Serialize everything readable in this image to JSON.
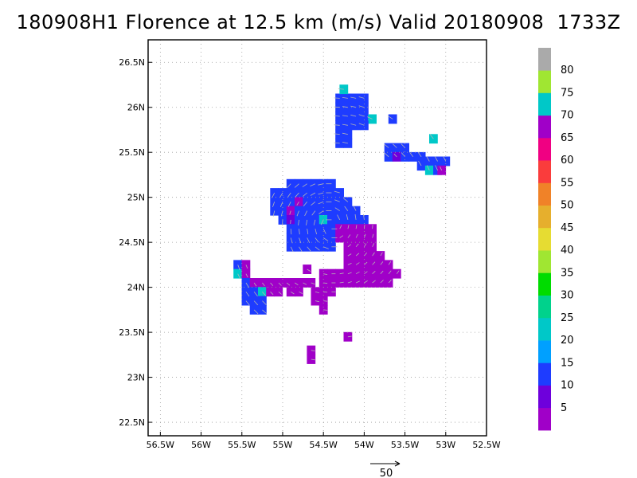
{
  "chart_data": {
    "type": "heatmap",
    "title": "180908H1 Florence at 12.5 km (m/s) Valid 20180908  1733Z",
    "x_ticks": [
      -56.5,
      -56,
      -55.5,
      -55,
      -54.5,
      -54,
      -53.5,
      -53,
      -52.5
    ],
    "x_tick_labels": [
      "56.5W",
      "56W",
      "55.5W",
      "55W",
      "54.5W",
      "54W",
      "53.5W",
      "53W",
      "52.5W"
    ],
    "y_ticks": [
      22.5,
      23,
      23.5,
      24,
      24.5,
      25,
      25.5,
      26,
      26.5
    ],
    "y_tick_labels": [
      "22.5N",
      "23N",
      "23.5N",
      "24N",
      "24.5N",
      "25N",
      "25.5N",
      "26N",
      "26.5N"
    ],
    "xlim": [
      -56.65,
      -52.5
    ],
    "ylim": [
      22.35,
      26.75
    ],
    "grid": true,
    "colorbar": {
      "levels": [
        0,
        5,
        10,
        15,
        20,
        25,
        30,
        35,
        40,
        45,
        50,
        55,
        60,
        65,
        70,
        75,
        80,
        85
      ],
      "labels": [
        "5",
        "10",
        "15",
        "20",
        "25",
        "30",
        "35",
        "40",
        "45",
        "50",
        "55",
        "60",
        "65",
        "70",
        "75",
        "80"
      ],
      "colors": [
        "#a000c8",
        "#6e00dc",
        "#1e3cff",
        "#00a0ff",
        "#00c8c8",
        "#00d28c",
        "#00dc00",
        "#a0e632",
        "#e6dc32",
        "#e6af2d",
        "#f08228",
        "#fa3c3c",
        "#f00082",
        "#a000c8",
        "#00c8c8",
        "#a0e632",
        "#aaaaaa"
      ]
    },
    "cells_note": "lon/lat centers with speed class (m/s)",
    "cells": [
      [
        -54.3,
        26.1,
        12
      ],
      [
        -54.2,
        26.1,
        12
      ],
      [
        -54.1,
        26.1,
        12
      ],
      [
        -54.0,
        26.1,
        12
      ],
      [
        -54.25,
        26.2,
        22
      ],
      [
        -54.3,
        26.0,
        12
      ],
      [
        -54.2,
        26.0,
        12
      ],
      [
        -54.1,
        26.0,
        12
      ],
      [
        -54.0,
        26.0,
        12
      ],
      [
        -54.3,
        25.9,
        12
      ],
      [
        -54.2,
        25.9,
        12
      ],
      [
        -54.1,
        25.9,
        12
      ],
      [
        -54.0,
        25.9,
        12
      ],
      [
        -53.9,
        25.87,
        22
      ],
      [
        -53.65,
        25.87,
        12
      ],
      [
        -54.3,
        25.8,
        12
      ],
      [
        -54.2,
        25.8,
        12
      ],
      [
        -54.1,
        25.8,
        12
      ],
      [
        -54.0,
        25.8,
        12
      ],
      [
        -54.3,
        25.7,
        12
      ],
      [
        -54.2,
        25.7,
        12
      ],
      [
        -54.3,
        25.6,
        12
      ],
      [
        -54.2,
        25.6,
        12
      ],
      [
        -53.7,
        25.55,
        12
      ],
      [
        -53.6,
        25.55,
        12
      ],
      [
        -53.5,
        25.55,
        12
      ],
      [
        -53.15,
        25.65,
        22
      ],
      [
        -53.7,
        25.45,
        12
      ],
      [
        -53.6,
        25.45,
        8
      ],
      [
        -53.5,
        25.45,
        12
      ],
      [
        -53.4,
        25.45,
        12
      ],
      [
        -53.3,
        25.45,
        12
      ],
      [
        -53.2,
        25.4,
        12
      ],
      [
        -53.1,
        25.4,
        12
      ],
      [
        -53.0,
        25.4,
        12
      ],
      [
        -53.3,
        25.35,
        12
      ],
      [
        -53.2,
        25.3,
        22
      ],
      [
        -53.1,
        25.3,
        12
      ],
      [
        -53.05,
        25.3,
        3
      ],
      [
        -54.9,
        25.15,
        12
      ],
      [
        -54.8,
        25.15,
        12
      ],
      [
        -54.7,
        25.15,
        12
      ],
      [
        -54.6,
        25.15,
        12
      ],
      [
        -54.5,
        25.15,
        12
      ],
      [
        -54.4,
        25.15,
        12
      ],
      [
        -55.1,
        25.05,
        12
      ],
      [
        -55.0,
        25.05,
        12
      ],
      [
        -54.9,
        25.05,
        12
      ],
      [
        -54.8,
        25.05,
        12
      ],
      [
        -54.7,
        25.05,
        12
      ],
      [
        -54.6,
        25.05,
        12
      ],
      [
        -54.5,
        25.05,
        12
      ],
      [
        -54.4,
        25.05,
        12
      ],
      [
        -54.3,
        25.05,
        12
      ],
      [
        -55.1,
        24.95,
        12
      ],
      [
        -55.0,
        24.95,
        12
      ],
      [
        -54.9,
        24.95,
        12
      ],
      [
        -54.8,
        24.95,
        3
      ],
      [
        -54.7,
        24.95,
        12
      ],
      [
        -54.6,
        24.95,
        12
      ],
      [
        -54.5,
        24.95,
        12
      ],
      [
        -54.4,
        24.95,
        12
      ],
      [
        -54.3,
        24.95,
        12
      ],
      [
        -54.2,
        24.95,
        12
      ],
      [
        -55.1,
        24.85,
        12
      ],
      [
        -55.0,
        24.85,
        12
      ],
      [
        -54.9,
        24.85,
        3
      ],
      [
        -54.8,
        24.85,
        12
      ],
      [
        -54.7,
        24.85,
        12
      ],
      [
        -54.6,
        24.85,
        12
      ],
      [
        -54.5,
        24.85,
        12
      ],
      [
        -54.4,
        24.85,
        12
      ],
      [
        -54.3,
        24.85,
        12
      ],
      [
        -54.2,
        24.85,
        12
      ],
      [
        -54.1,
        24.85,
        12
      ],
      [
        -55.0,
        24.75,
        12
      ],
      [
        -54.9,
        24.75,
        8
      ],
      [
        -54.8,
        24.75,
        12
      ],
      [
        -54.7,
        24.75,
        12
      ],
      [
        -54.6,
        24.75,
        12
      ],
      [
        -54.5,
        24.75,
        22
      ],
      [
        -54.4,
        24.75,
        12
      ],
      [
        -54.3,
        24.75,
        12
      ],
      [
        -54.2,
        24.75,
        12
      ],
      [
        -54.1,
        24.75,
        12
      ],
      [
        -54.0,
        24.75,
        12
      ],
      [
        -54.9,
        24.65,
        12
      ],
      [
        -54.8,
        24.65,
        12
      ],
      [
        -54.7,
        24.65,
        12
      ],
      [
        -54.6,
        24.65,
        12
      ],
      [
        -54.5,
        24.65,
        12
      ],
      [
        -54.4,
        24.65,
        12
      ],
      [
        -54.3,
        24.65,
        3
      ],
      [
        -54.2,
        24.65,
        3
      ],
      [
        -54.1,
        24.65,
        3
      ],
      [
        -54.0,
        24.65,
        3
      ],
      [
        -53.9,
        24.65,
        3
      ],
      [
        -54.9,
        24.55,
        12
      ],
      [
        -54.8,
        24.55,
        12
      ],
      [
        -54.7,
        24.55,
        12
      ],
      [
        -54.6,
        24.55,
        12
      ],
      [
        -54.5,
        24.55,
        12
      ],
      [
        -54.4,
        24.55,
        12
      ],
      [
        -54.3,
        24.55,
        3
      ],
      [
        -54.2,
        24.55,
        3
      ],
      [
        -54.1,
        24.55,
        3
      ],
      [
        -54.0,
        24.55,
        3
      ],
      [
        -53.9,
        24.55,
        3
      ],
      [
        -54.9,
        24.45,
        12
      ],
      [
        -54.8,
        24.45,
        12
      ],
      [
        -54.7,
        24.45,
        12
      ],
      [
        -54.6,
        24.45,
        12
      ],
      [
        -54.5,
        24.45,
        12
      ],
      [
        -54.4,
        24.45,
        12
      ],
      [
        -54.2,
        24.45,
        3
      ],
      [
        -54.1,
        24.45,
        3
      ],
      [
        -54.0,
        24.45,
        3
      ],
      [
        -53.9,
        24.45,
        3
      ],
      [
        -54.2,
        24.35,
        3
      ],
      [
        -54.1,
        24.35,
        3
      ],
      [
        -54.0,
        24.35,
        3
      ],
      [
        -53.9,
        24.35,
        3
      ],
      [
        -53.8,
        24.35,
        3
      ],
      [
        -54.2,
        24.25,
        3
      ],
      [
        -54.1,
        24.25,
        3
      ],
      [
        -54.0,
        24.25,
        3
      ],
      [
        -53.9,
        24.25,
        3
      ],
      [
        -53.8,
        24.25,
        3
      ],
      [
        -53.7,
        24.25,
        3
      ],
      [
        -55.55,
        24.25,
        12
      ],
      [
        -55.55,
        24.15,
        22
      ],
      [
        -55.45,
        24.25,
        3
      ],
      [
        -55.45,
        24.15,
        3
      ],
      [
        -54.7,
        24.2,
        3
      ],
      [
        -54.5,
        24.15,
        3
      ],
      [
        -54.4,
        24.15,
        3
      ],
      [
        -54.3,
        24.15,
        3
      ],
      [
        -54.2,
        24.15,
        3
      ],
      [
        -54.1,
        24.15,
        3
      ],
      [
        -54.0,
        24.15,
        3
      ],
      [
        -53.9,
        24.15,
        3
      ],
      [
        -53.8,
        24.15,
        3
      ],
      [
        -53.7,
        24.15,
        3
      ],
      [
        -53.6,
        24.15,
        3
      ],
      [
        -55.45,
        24.05,
        12
      ],
      [
        -55.35,
        24.05,
        3
      ],
      [
        -55.25,
        24.05,
        3
      ],
      [
        -55.15,
        24.05,
        3
      ],
      [
        -55.05,
        24.05,
        3
      ],
      [
        -54.95,
        24.05,
        3
      ],
      [
        -54.85,
        24.05,
        3
      ],
      [
        -54.75,
        24.05,
        3
      ],
      [
        -54.65,
        24.05,
        3
      ],
      [
        -54.5,
        24.05,
        3
      ],
      [
        -54.4,
        24.05,
        3
      ],
      [
        -54.3,
        24.05,
        3
      ],
      [
        -54.2,
        24.05,
        3
      ],
      [
        -54.1,
        24.05,
        3
      ],
      [
        -54.0,
        24.05,
        3
      ],
      [
        -53.9,
        24.05,
        3
      ],
      [
        -53.8,
        24.05,
        3
      ],
      [
        -53.7,
        24.05,
        3
      ],
      [
        -55.45,
        23.95,
        12
      ],
      [
        -55.35,
        23.95,
        12
      ],
      [
        -55.25,
        23.95,
        22
      ],
      [
        -55.15,
        23.95,
        3
      ],
      [
        -55.05,
        23.95,
        3
      ],
      [
        -54.9,
        23.95,
        3
      ],
      [
        -54.8,
        23.95,
        3
      ],
      [
        -54.6,
        23.95,
        3
      ],
      [
        -54.5,
        23.95,
        3
      ],
      [
        -54.4,
        23.95,
        3
      ],
      [
        -55.45,
        23.85,
        12
      ],
      [
        -55.35,
        23.85,
        12
      ],
      [
        -55.25,
        23.85,
        12
      ],
      [
        -54.6,
        23.85,
        3
      ],
      [
        -54.5,
        23.85,
        3
      ],
      [
        -55.35,
        23.75,
        12
      ],
      [
        -55.25,
        23.75,
        12
      ],
      [
        -54.5,
        23.75,
        3
      ],
      [
        -54.2,
        23.45,
        3
      ],
      [
        -54.65,
        23.3,
        3
      ],
      [
        -54.65,
        23.2,
        3
      ]
    ],
    "reference_vector": {
      "label": "50"
    }
  }
}
